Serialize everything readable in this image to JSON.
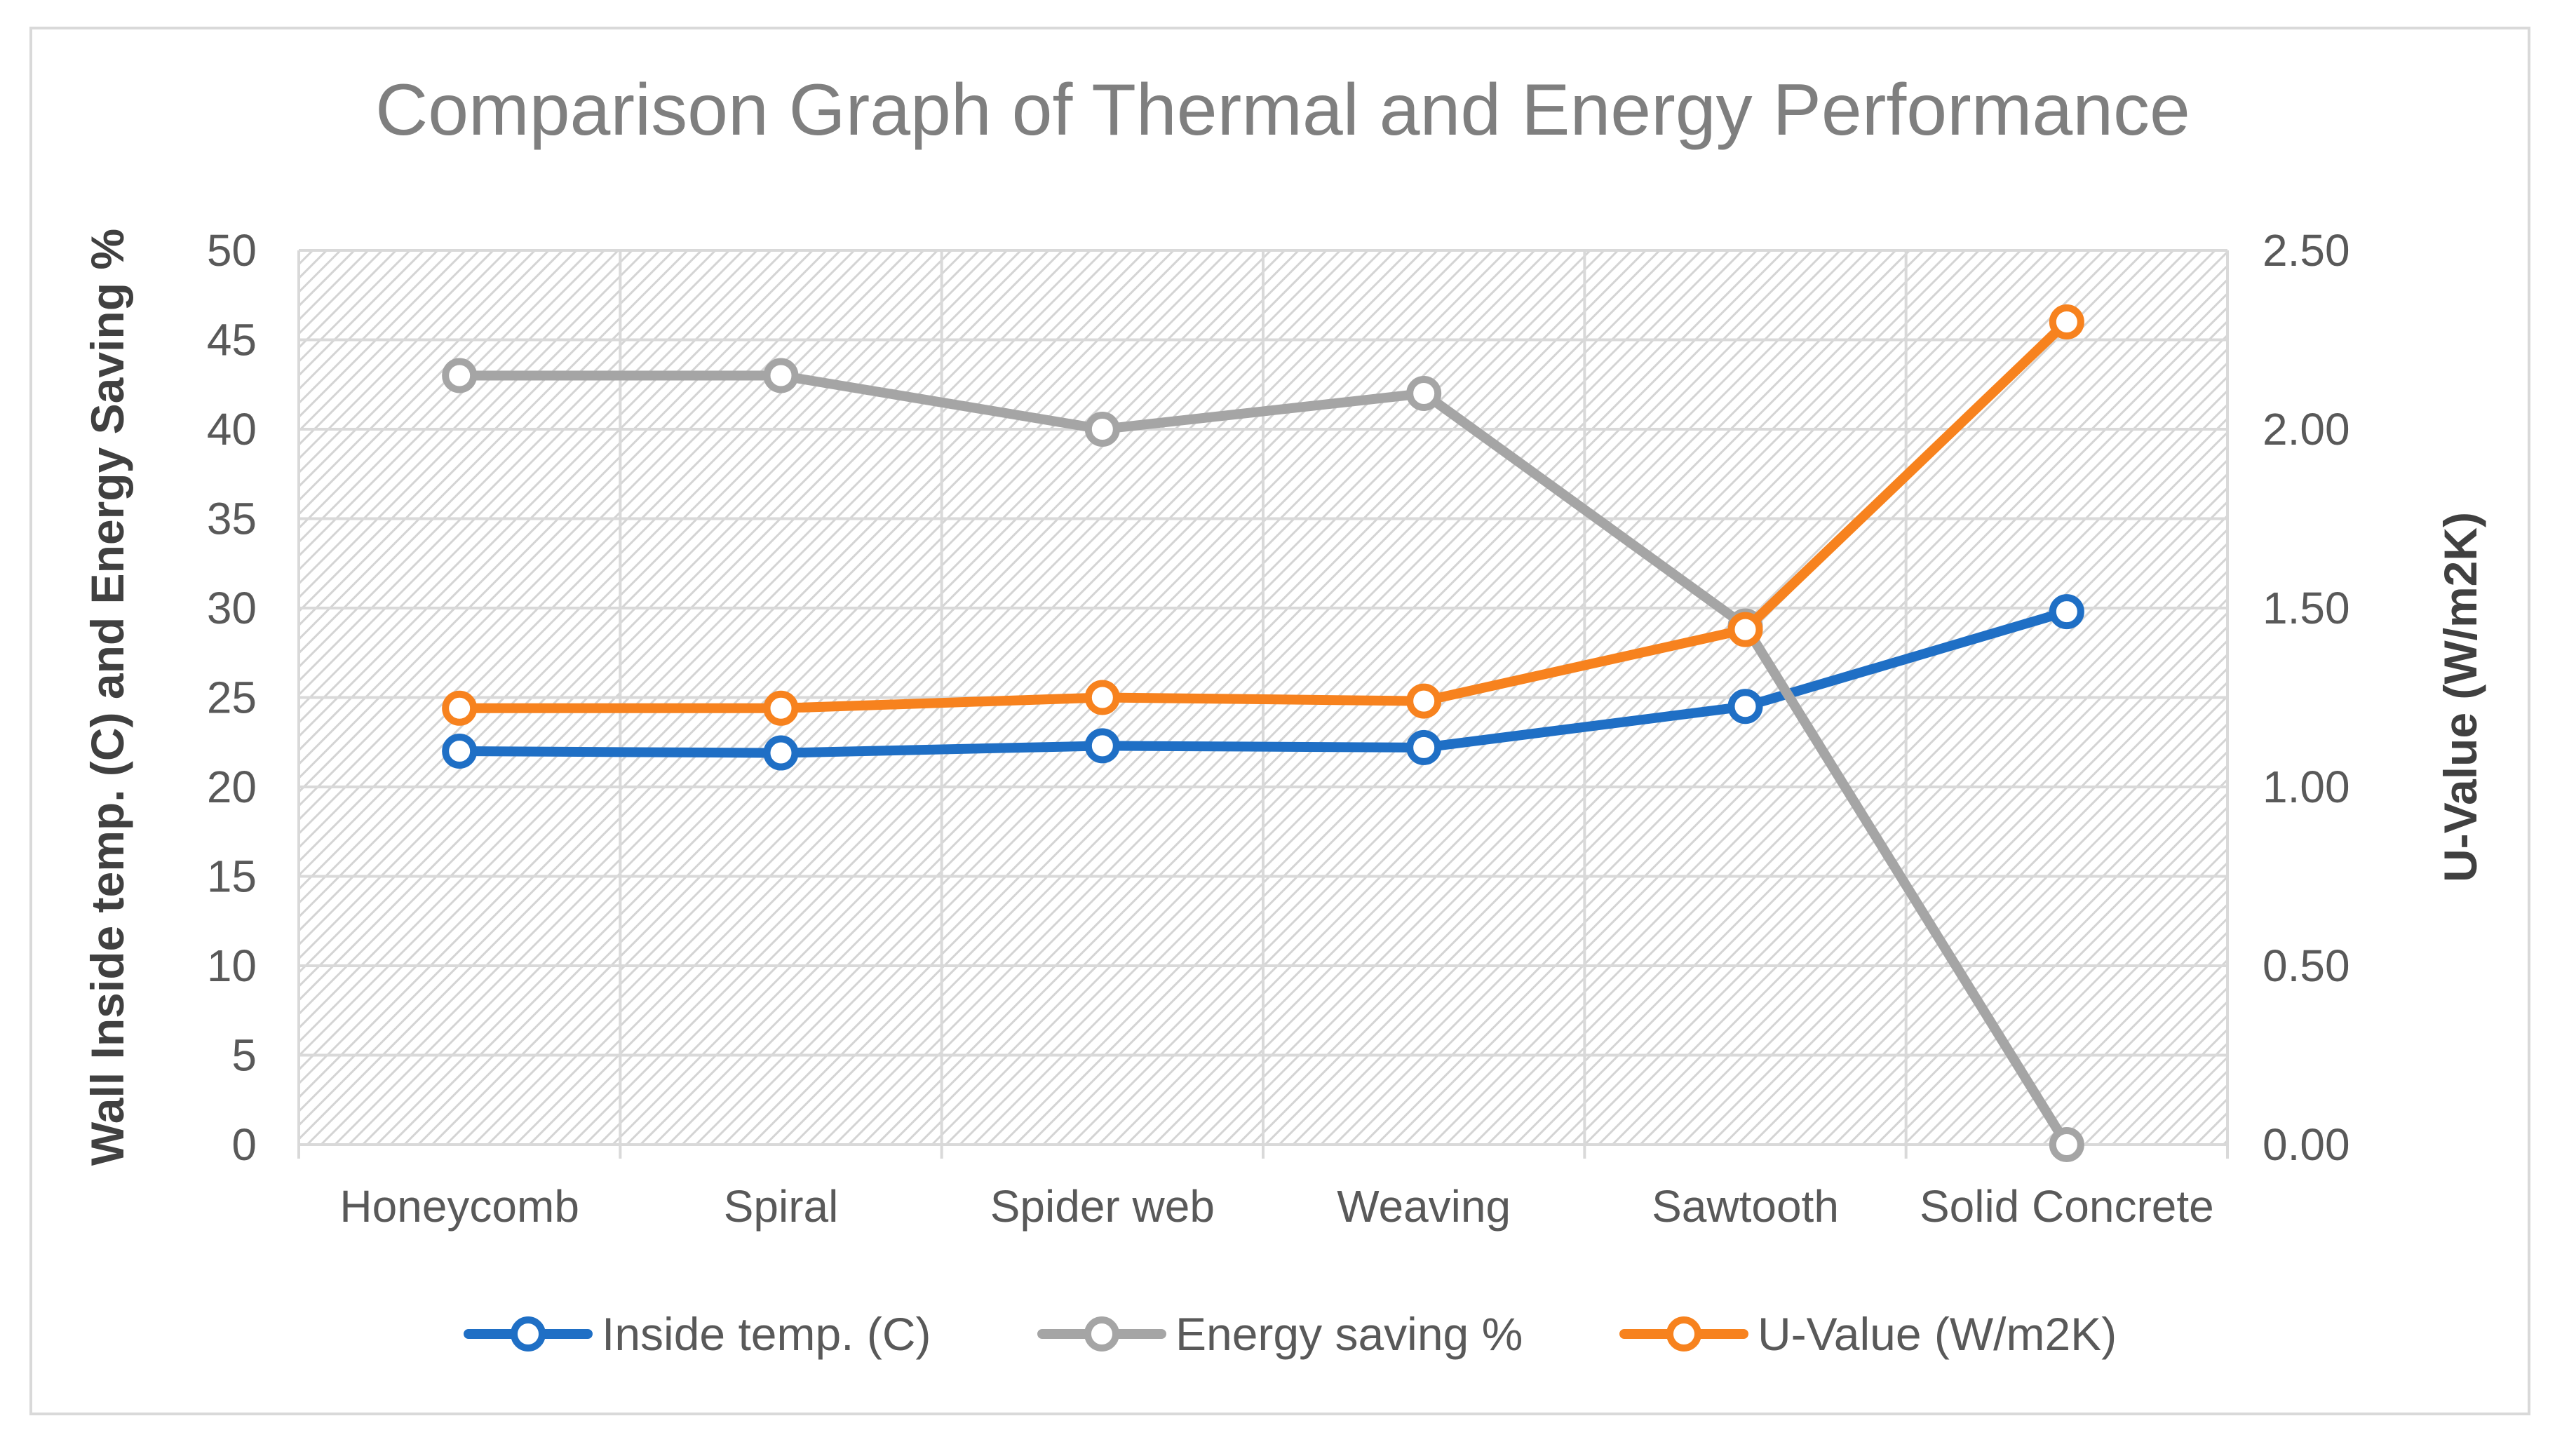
{
  "chart_data": {
    "type": "line",
    "title": "Comparison Graph of Thermal and Energy Performance",
    "categories": [
      "Honeycomb",
      "Spiral",
      "Spider web",
      "Weaving",
      "Sawtooth",
      "Solid Concrete"
    ],
    "y_left": {
      "label": "Wall Inside temp. (C) and Energy Saving %",
      "range": [
        0,
        50
      ],
      "ticks": [
        "0",
        "5",
        "10",
        "15",
        "20",
        "25",
        "30",
        "35",
        "40",
        "45",
        "50"
      ]
    },
    "y_right": {
      "label": "U-Value (W/m2K)",
      "range": [
        0,
        2.5
      ],
      "ticks": [
        "0.00",
        "0.50",
        "1.00",
        "1.50",
        "2.00",
        "2.50"
      ]
    },
    "series": [
      {
        "name": "Inside temp. (C)",
        "axis": "left",
        "color": "#1f6fc5",
        "values": [
          22.0,
          21.9,
          22.3,
          22.2,
          24.5,
          29.8
        ]
      },
      {
        "name": "Energy saving %",
        "axis": "left",
        "color": "#a5a5a5",
        "values": [
          43,
          43,
          40,
          42,
          29,
          0
        ]
      },
      {
        "name": "U-Value (W/m2K)",
        "axis": "right",
        "color": "#f7821e",
        "values": [
          1.22,
          1.22,
          1.25,
          1.24,
          1.44,
          2.3
        ]
      }
    ],
    "grid": true,
    "legend_position": "bottom"
  }
}
